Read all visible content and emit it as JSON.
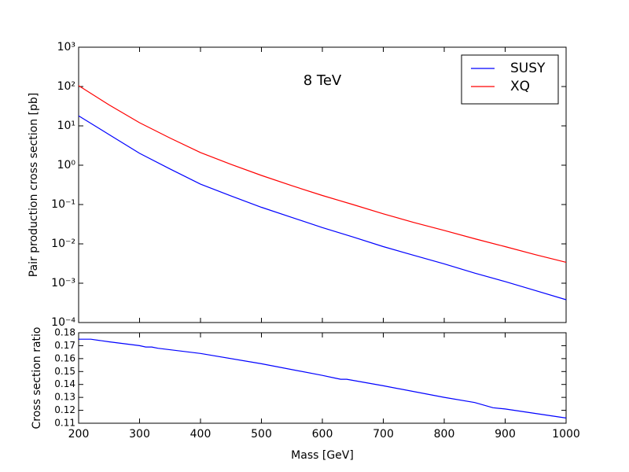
{
  "chart_data": [
    {
      "type": "line",
      "log_y": true,
      "ylabel": "Pair production cross section [pb]",
      "annotation": "8 TeV",
      "legend": "upper right",
      "xlim": [
        200,
        1000
      ],
      "xticks": [
        200,
        300,
        400,
        500,
        600,
        700,
        800,
        900,
        1000
      ],
      "ylim": [
        0.0001,
        1000
      ],
      "yticks": [
        {
          "value": 0.0001,
          "label": "10⁻⁴"
        },
        {
          "value": 0.001,
          "label": "10⁻³"
        },
        {
          "value": 0.01,
          "label": "10⁻²"
        },
        {
          "value": 0.1,
          "label": "10⁻¹"
        },
        {
          "value": 1,
          "label": "10⁰"
        },
        {
          "value": 10,
          "label": "10¹"
        },
        {
          "value": 100,
          "label": "10²"
        },
        {
          "value": 1000,
          "label": "10³"
        }
      ],
      "x": [
        200,
        250,
        300,
        350,
        400,
        450,
        500,
        550,
        600,
        650,
        700,
        750,
        800,
        850,
        900,
        950,
        1000
      ],
      "series": [
        {
          "name": "SUSY",
          "color": "#0000ff",
          "values": [
            18,
            6.0,
            2.0,
            0.8,
            0.33,
            0.165,
            0.085,
            0.047,
            0.026,
            0.015,
            0.0085,
            0.0051,
            0.0031,
            0.0018,
            0.0011,
            0.00065,
            0.00038
          ]
        },
        {
          "name": "XQ",
          "color": "#ff0000",
          "values": [
            105,
            34,
            12,
            4.9,
            2.1,
            1.05,
            0.55,
            0.3,
            0.17,
            0.1,
            0.058,
            0.035,
            0.022,
            0.0135,
            0.0085,
            0.0053,
            0.0034
          ]
        }
      ]
    },
    {
      "type": "line",
      "ylabel": "Cross section ratio",
      "xlabel": "Mass [GeV]",
      "xlim": [
        200,
        1000
      ],
      "xticks": [
        200,
        300,
        400,
        500,
        600,
        700,
        800,
        900,
        1000
      ],
      "ylim": [
        0.11,
        0.18
      ],
      "yticks": [
        0.11,
        0.12,
        0.13,
        0.14,
        0.15,
        0.16,
        0.17,
        0.18
      ],
      "x": [
        200,
        220,
        250,
        300,
        310,
        320,
        330,
        400,
        500,
        600,
        620,
        630,
        640,
        700,
        800,
        850,
        880,
        900,
        1000
      ],
      "series": [
        {
          "color": "#0000ff",
          "values": [
            0.175,
            0.175,
            0.173,
            0.17,
            0.169,
            0.169,
            0.168,
            0.164,
            0.156,
            0.147,
            0.145,
            0.144,
            0.144,
            0.139,
            0.13,
            0.126,
            0.122,
            0.121,
            0.114
          ]
        }
      ]
    }
  ]
}
